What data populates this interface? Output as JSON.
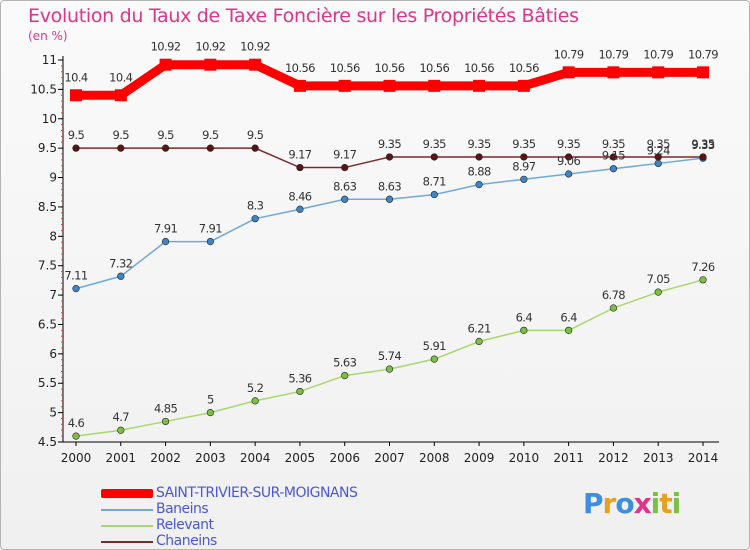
{
  "header": {
    "title": "Evolution du Taux de Taxe Foncière sur les Propriétés Bâties",
    "unit": "(en %)"
  },
  "logo": {
    "text": "Proxiti"
  },
  "chart_data": {
    "type": "line",
    "title": "Evolution du Taux de Taxe Foncière sur les Propriétés Bâties",
    "ylabel": "(en %)",
    "xlabel": "",
    "x": [
      "2000",
      "2001",
      "2002",
      "2003",
      "2004",
      "2005",
      "2006",
      "2007",
      "2008",
      "2009",
      "2010",
      "2011",
      "2012",
      "2013",
      "2014"
    ],
    "ylim": [
      4.5,
      11
    ],
    "yticks": [
      "4.5",
      "5",
      "5.5",
      "6",
      "6.5",
      "7",
      "7.5",
      "8",
      "8.5",
      "9",
      "9.5",
      "10",
      "10.5",
      "11"
    ],
    "grid": false,
    "legend": "bottom-left",
    "series": [
      {
        "name": "SAINT-TRIVIER-SUR-MOIGNANS",
        "color": "#ff0000",
        "values": [
          10.4,
          10.4,
          10.92,
          10.92,
          10.92,
          10.56,
          10.56,
          10.56,
          10.56,
          10.56,
          10.56,
          10.79,
          10.79,
          10.79,
          10.79
        ],
        "labels": [
          "10.4",
          "10.4",
          "10.92",
          "10.92",
          "10.92",
          "10.56",
          "10.56",
          "10.56",
          "10.56",
          "10.56",
          "10.56",
          "10.79",
          "10.79",
          "10.79",
          "10.79"
        ]
      },
      {
        "name": "Baneins",
        "color": "#6fa8dc",
        "marker": "#3d85c6",
        "values": [
          7.11,
          7.32,
          7.91,
          7.91,
          8.3,
          8.46,
          8.63,
          8.63,
          8.71,
          8.88,
          8.97,
          9.06,
          9.15,
          9.24,
          9.33
        ],
        "labels": [
          "7.11",
          "7.32",
          "7.91",
          "7.91",
          "8.3",
          "8.46",
          "8.63",
          "8.63",
          "8.71",
          "8.88",
          "8.97",
          "9.06",
          "9.15",
          "9.24",
          "9.33"
        ]
      },
      {
        "name": "Relevant",
        "color": "#a6d96a",
        "marker": "#7ac143",
        "values": [
          4.6,
          4.7,
          4.85,
          5,
          5.2,
          5.36,
          5.63,
          5.74,
          5.91,
          6.21,
          6.4,
          6.4,
          6.78,
          7.05,
          7.26
        ],
        "labels": [
          "4.6",
          "4.7",
          "4.85",
          "5",
          "5.2",
          "5.36",
          "5.63",
          "5.74",
          "5.91",
          "6.21",
          "6.4",
          "6.4",
          "6.78",
          "7.05",
          "7.26"
        ]
      },
      {
        "name": "Chaneins",
        "color": "#7b2a2a",
        "marker": "#5b1414",
        "values": [
          9.5,
          9.5,
          9.5,
          9.5,
          9.5,
          9.17,
          9.17,
          9.35,
          9.35,
          9.35,
          9.35,
          9.35,
          9.35,
          9.35,
          9.35
        ],
        "labels": [
          "9.5",
          "9.5",
          "9.5",
          "9.5",
          "9.5",
          "9.17",
          "9.17",
          "9.35",
          "9.35",
          "9.35",
          "9.35",
          "9.35",
          "9.35",
          "9.35",
          "9.35"
        ]
      }
    ]
  }
}
